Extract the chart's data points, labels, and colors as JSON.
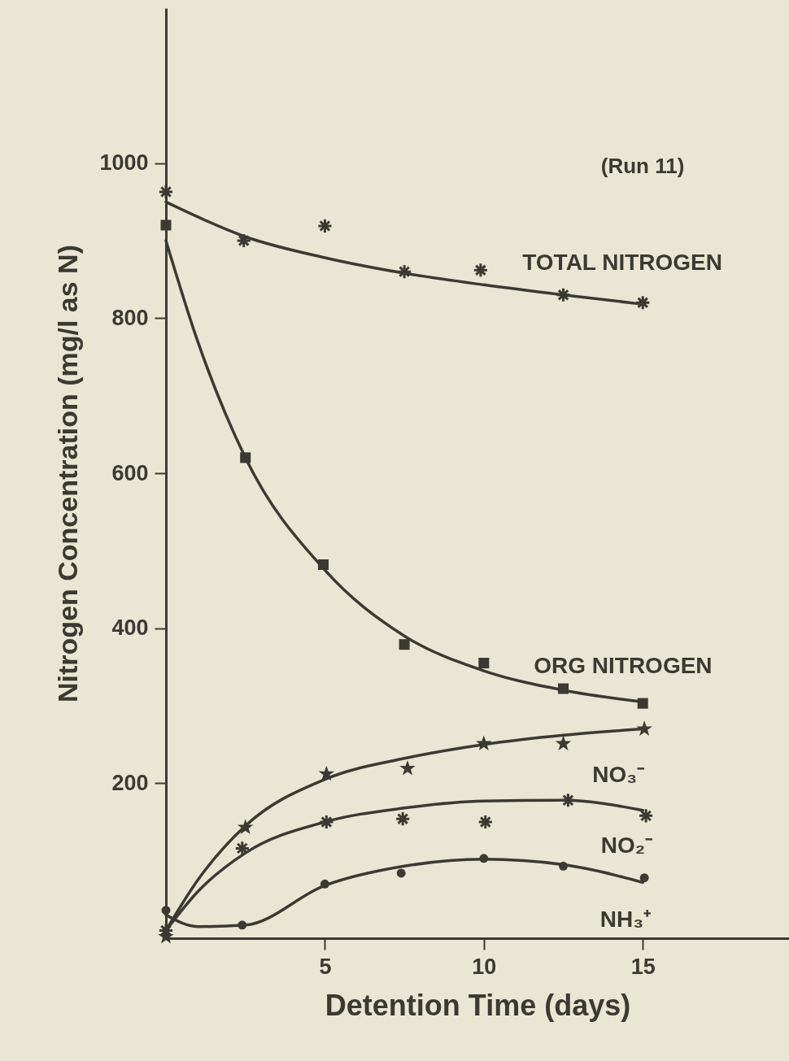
{
  "chart_data": {
    "type": "scatter",
    "xlabel": "Detention Time (days)",
    "ylabel": "Nitrogen Concentration (mg/l as N)",
    "xlim": [
      0,
      19.6
    ],
    "ylim": [
      0,
      1200
    ],
    "xticks": [
      5,
      10,
      15
    ],
    "yticks": [
      200,
      400,
      600,
      800,
      1000
    ],
    "grid": false,
    "annotations": [
      "(Run 11)"
    ],
    "series": [
      {
        "name": "TOTAL NITROGEN",
        "marker": "cross",
        "color": "#3a3a32",
        "x": [
          0,
          2.45,
          5,
          7.5,
          9.9,
          12.5,
          15
        ],
        "values": [
          963,
          900,
          919,
          860,
          862,
          830,
          820
        ]
      },
      {
        "name": "ORG NITROGEN",
        "marker": "square",
        "color": "#3a3a32",
        "x": [
          0,
          2.5,
          4.95,
          7.5,
          10,
          12.5,
          15
        ],
        "values": [
          920,
          620,
          482,
          379,
          355,
          322,
          303
        ]
      },
      {
        "name": "NO₃⁻",
        "marker": "star",
        "color": "#3a3a32",
        "x": [
          0,
          2.5,
          5.05,
          7.6,
          10,
          12.5,
          15.05
        ],
        "values": [
          2,
          143,
          212,
          219,
          251,
          251,
          270
        ]
      },
      {
        "name": "NO₂⁻",
        "marker": "cross",
        "color": "#3a3a32",
        "x": [
          0,
          2.4,
          5.05,
          7.45,
          10.05,
          12.65,
          15.1
        ],
        "values": [
          10,
          116,
          150,
          154,
          150,
          178,
          158
        ]
      },
      {
        "name": "NH₃⁺",
        "marker": "circle",
        "color": "#3a3a32",
        "x": [
          0,
          2.4,
          5,
          7.4,
          10,
          12.5,
          15.05
        ],
        "values": [
          36,
          17,
          70,
          84,
          103,
          93,
          78
        ]
      },
      {
        "type": "line",
        "color": "#3a3a32",
        "x": [
          0,
          2.5,
          5,
          7.5,
          10,
          12.5,
          15
        ],
        "values": [
          950,
          905,
          878,
          858,
          843,
          830,
          818
        ]
      },
      {
        "type": "line",
        "color": "#3a3a32",
        "x": [
          0,
          1,
          2.5,
          5,
          7.5,
          10,
          12.5,
          15
        ],
        "values": [
          900,
          770,
          620,
          475,
          390,
          345,
          320,
          305
        ]
      },
      {
        "type": "line",
        "color": "#3a3a32",
        "x": [
          0,
          1,
          2.5,
          5,
          7.5,
          10,
          12.5,
          15
        ],
        "values": [
          10,
          75,
          145,
          205,
          232,
          250,
          262,
          270
        ]
      },
      {
        "type": "line",
        "color": "#3a3a32",
        "x": [
          0,
          1,
          2.5,
          5,
          7.5,
          10,
          12.5,
          15
        ],
        "values": [
          10,
          60,
          110,
          150,
          168,
          177,
          178,
          165
        ]
      },
      {
        "type": "line",
        "color": "#3a3a32",
        "x": [
          0,
          1,
          2.5,
          5,
          7.5,
          10,
          12.5,
          15
        ],
        "values": [
          30,
          15,
          17,
          68,
          93,
          102,
          95,
          72
        ]
      }
    ]
  }
}
